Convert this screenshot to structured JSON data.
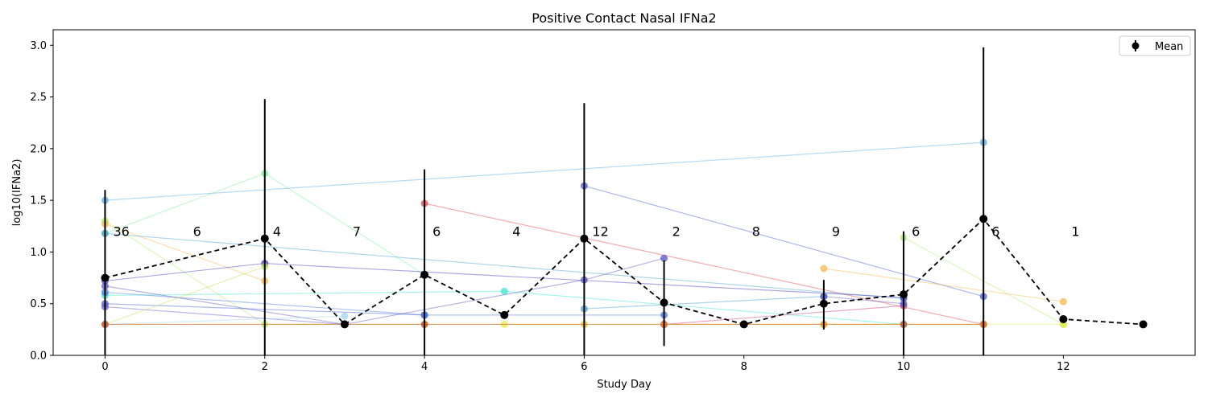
{
  "chart_data": {
    "type": "line",
    "title": "Positive Contact Nasal IFNa2",
    "xlabel": "Study Day",
    "ylabel": "log10(IFNa2)",
    "xlim": [
      -0.65,
      13.65
    ],
    "ylim": [
      0,
      3.15
    ],
    "xticks": [
      0,
      2,
      4,
      6,
      8,
      10,
      12
    ],
    "yticks": [
      0.0,
      0.5,
      1.0,
      1.5,
      2.0,
      2.5,
      3.0
    ],
    "ytick_labels": [
      "0.0",
      "0.5",
      "1.0",
      "1.5",
      "2.0",
      "2.5",
      "3.0"
    ],
    "legend": {
      "location": "top-right",
      "entries": [
        {
          "label": "Mean",
          "color": "#000000"
        }
      ]
    },
    "mean_series": {
      "name": "Mean",
      "color": "#000000",
      "style": "dashed",
      "x": [
        0,
        2,
        3,
        4,
        5,
        6,
        7,
        8,
        9,
        10,
        11,
        12,
        13
      ],
      "y": [
        0.75,
        1.13,
        0.3,
        0.78,
        0.39,
        1.13,
        0.51,
        0.3,
        0.5,
        0.59,
        1.32,
        0.35,
        0.3
      ],
      "err_low": [
        0.0,
        0.0,
        0.3,
        0.0,
        0.39,
        0.0,
        0.09,
        0.3,
        0.25,
        0.0,
        0.0,
        0.35,
        0.3
      ],
      "err_high": [
        1.6,
        2.48,
        0.3,
        1.8,
        0.39,
        2.44,
        0.92,
        0.3,
        0.73,
        1.2,
        2.98,
        0.35,
        0.3
      ]
    },
    "counts": {
      "x": [
        0,
        1,
        2,
        3,
        4,
        5,
        6,
        7,
        8,
        9,
        10,
        11,
        12,
        13
      ],
      "labels": [
        "36",
        "6",
        "4",
        "7",
        "6",
        "4",
        "12",
        "2",
        "8",
        "9",
        "6",
        "6",
        "1",
        ""
      ],
      "y": 1.2
    },
    "subject_series": [
      {
        "color": "#5aafe6",
        "x": [
          0,
          11
        ],
        "y": [
          1.5,
          2.06
        ]
      },
      {
        "color": "#4a5fd6",
        "x": [
          6,
          11
        ],
        "y": [
          1.64,
          0.57
        ]
      },
      {
        "color": "#e04848",
        "x": [
          4,
          11
        ],
        "y": [
          1.47,
          0.3
        ]
      },
      {
        "color": "#7ef0a0",
        "x": [
          0,
          2,
          4
        ],
        "y": [
          1.18,
          1.76,
          0.78
        ]
      },
      {
        "color": "#b2ee6a",
        "x": [
          0,
          2,
          4
        ],
        "y": [
          1.3,
          0.3,
          0.3
        ]
      },
      {
        "color": "#f5b850",
        "x": [
          0,
          2
        ],
        "y": [
          1.27,
          0.72
        ]
      },
      {
        "color": "#48a0d0",
        "x": [
          0,
          10
        ],
        "y": [
          1.18,
          0.55
        ]
      },
      {
        "color": "#4a3ec0",
        "x": [
          0,
          2,
          10
        ],
        "y": [
          0.72,
          0.89,
          0.56
        ]
      },
      {
        "color": "#3fe6d0",
        "x": [
          0,
          5,
          10
        ],
        "y": [
          0.58,
          0.62,
          0.3
        ]
      },
      {
        "color": "#5a56c8",
        "x": [
          0,
          3,
          6,
          7
        ],
        "y": [
          0.67,
          0.3,
          0.73,
          0.94
        ]
      },
      {
        "color": "#4a5fd6",
        "x": [
          0,
          4
        ],
        "y": [
          0.5,
          0.39
        ]
      },
      {
        "color": "#6a5ad0",
        "x": [
          0,
          3
        ],
        "y": [
          0.47,
          0.3
        ]
      },
      {
        "color": "#4a78e0",
        "x": [
          0,
          4,
          7
        ],
        "y": [
          0.61,
          0.39,
          0.39
        ]
      },
      {
        "color": "#48a0d0",
        "x": [
          6,
          9
        ],
        "y": [
          0.45,
          0.57
        ]
      },
      {
        "color": "#f5b850",
        "x": [
          9,
          12
        ],
        "y": [
          0.84,
          0.52
        ]
      },
      {
        "color": "#b2ee6a",
        "x": [
          10,
          12
        ],
        "y": [
          1.14,
          0.3
        ]
      },
      {
        "color": "#c83a80",
        "x": [
          7,
          10
        ],
        "y": [
          0.3,
          0.48
        ]
      },
      {
        "color": "#5a56c8",
        "x": [
          9,
          10
        ],
        "y": [
          0.57,
          0.5
        ]
      },
      {
        "color": "#e5ee48",
        "x": [
          5,
          9,
          12
        ],
        "y": [
          0.3,
          0.3,
          0.3
        ]
      },
      {
        "color": "#e8c040",
        "x": [
          0,
          6
        ],
        "y": [
          0.3,
          0.3
        ]
      },
      {
        "color": "#c0e060",
        "x": [
          0,
          2
        ],
        "y": [
          0.3,
          0.86
        ]
      },
      {
        "color": "#a0d6f0",
        "x": [
          0,
          3
        ],
        "y": [
          0.3,
          0.38
        ]
      },
      {
        "color": "#d44818",
        "x": [
          0,
          4,
          7,
          10,
          11
        ],
        "y": [
          0.3,
          0.3,
          0.3,
          0.3,
          0.3
        ]
      },
      {
        "color": "#e88a3c",
        "x": [
          7,
          9,
          11
        ],
        "y": [
          0.3,
          0.3,
          0.3
        ]
      }
    ]
  }
}
